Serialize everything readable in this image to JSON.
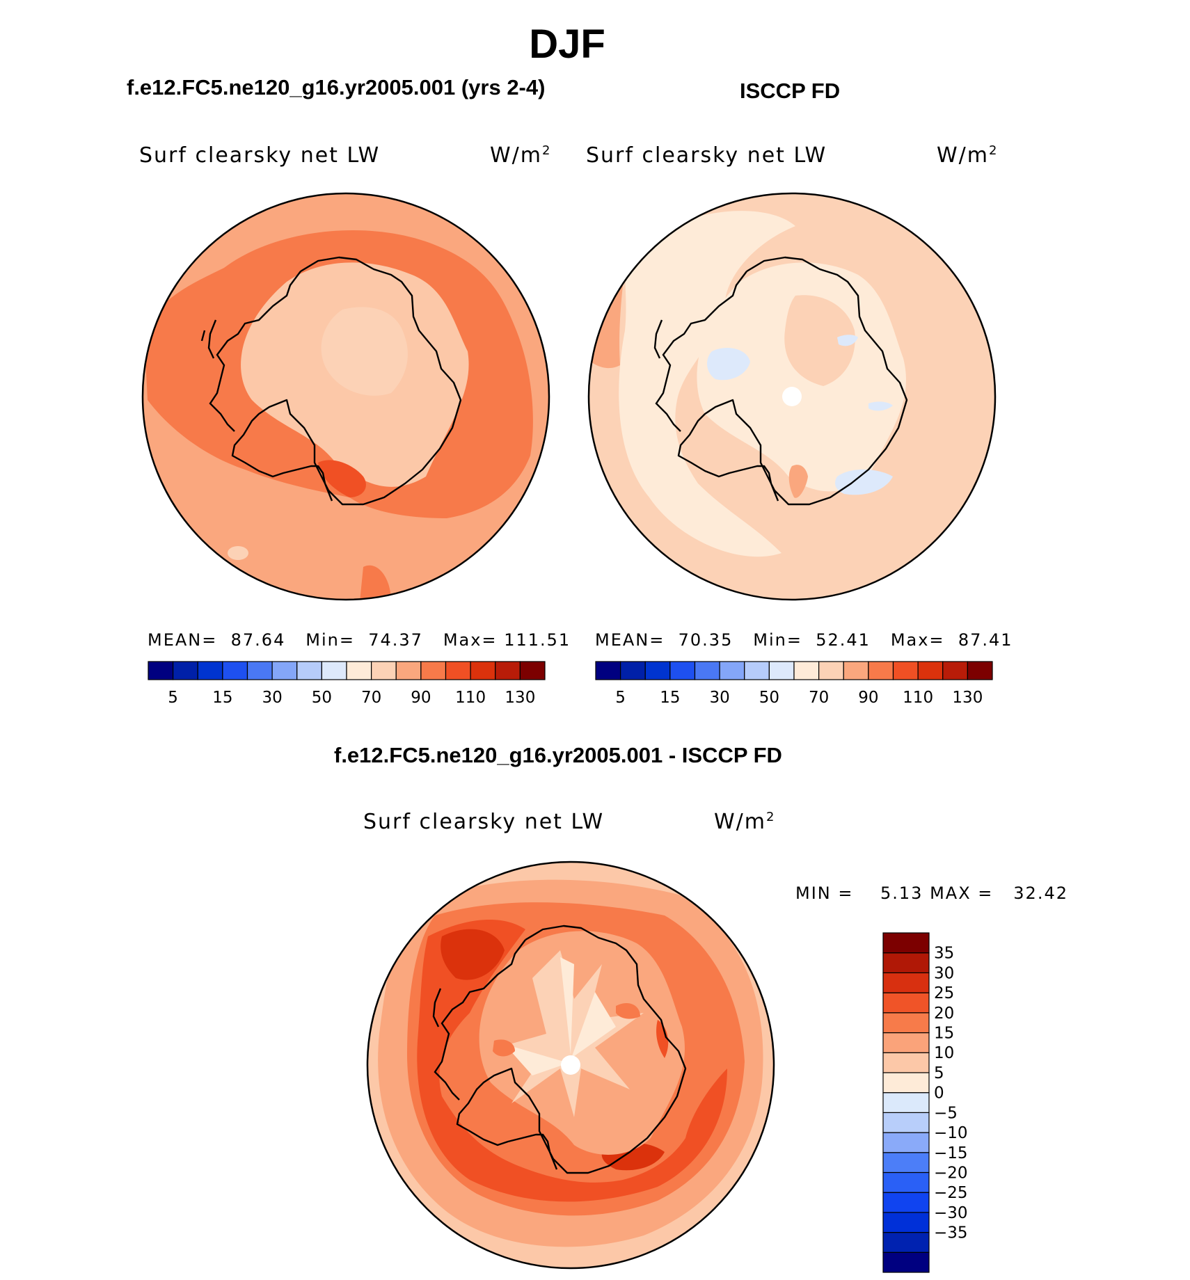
{
  "title": "DJF",
  "panels": [
    {
      "id": "model",
      "header": "f.e12.FC5.ne120_g16.yr2005.001 (yrs 2-4)",
      "variable": "Surf clearsky net LW",
      "units": "W/m",
      "units_exp": "2",
      "stats": {
        "mean_label": "MEAN=",
        "mean": "87.64",
        "min_label": "Min=",
        "min": "74.37",
        "max_label": "Max=",
        "max": "111.51"
      }
    },
    {
      "id": "obs",
      "header": "ISCCP FD",
      "variable": "Surf clearsky net LW",
      "units": "W/m",
      "units_exp": "2",
      "stats": {
        "mean_label": "MEAN=",
        "mean": "70.35",
        "min_label": "Min=",
        "min": "52.41",
        "max_label": "Max=",
        "max": "87.41"
      }
    },
    {
      "id": "diff",
      "header": "f.e12.FC5.ne120_g16.yr2005.001 - ISCCP FD",
      "variable": "Surf clearsky net LW",
      "units": "W/m",
      "units_exp": "2",
      "stats": {
        "min_label": "MIN =",
        "min": "5.13",
        "max_label": "MAX =",
        "max": "32.42"
      }
    }
  ],
  "colorbar_abs": {
    "colors": [
      "#000080",
      "#0020a8",
      "#0034d0",
      "#1e50f0",
      "#4a78f4",
      "#84a6f8",
      "#b6ccfa",
      "#dde9fb",
      "#feebd8",
      "#fcd2b6",
      "#faa77e",
      "#f77a4a",
      "#f05024",
      "#db320c",
      "#b81c08",
      "#7c0000"
    ],
    "tick_labels": [
      "5",
      "15",
      "30",
      "50",
      "70",
      "90",
      "110",
      "130"
    ],
    "tick_boundaries": [
      1,
      3,
      5,
      7,
      9,
      11,
      13,
      15
    ]
  },
  "colorbar_diff": {
    "colors": [
      "#000080",
      "#0022b0",
      "#0030d8",
      "#1044f0",
      "#2a60f6",
      "#4c7ef8",
      "#8aaaf9",
      "#b8cefa",
      "#dbe9fb",
      "#feebd8",
      "#fcc8a8",
      "#faa37a",
      "#f77b4a",
      "#f05428",
      "#d83010",
      "#b01806",
      "#7c0000"
    ],
    "tick_labels": [
      "35",
      "30",
      "25",
      "20",
      "15",
      "10",
      "5",
      "0",
      "−5",
      "−10",
      "−15",
      "−20",
      "−25",
      "−30",
      "−35"
    ]
  },
  "map_palette": {
    "model": {
      "base": "#faa77e",
      "ring": "#f77a4a",
      "land": "#fcc8a8",
      "interior": "#fcd2b6",
      "hot": "#f05024"
    },
    "obs": {
      "base": "#fcd2b6",
      "light": "#feebd8",
      "ice": "#dde9fb",
      "warm": "#faa77e"
    },
    "diff": {
      "base": "#faa77e",
      "outer": "#fcc8a8",
      "ring": "#f77a4a",
      "strong": "#f05024",
      "peak": "#db320c",
      "center": "#fcd2b6",
      "spokes": "#feebd8"
    }
  }
}
